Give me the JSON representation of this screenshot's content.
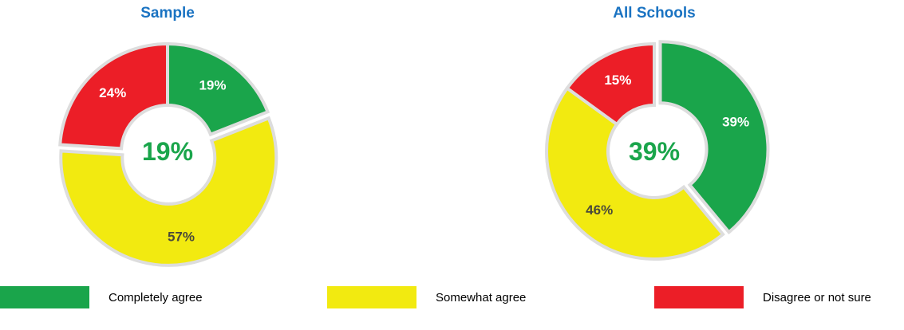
{
  "colors": {
    "title": "#1a73c2",
    "center_text": "#1aa54b",
    "slice_label_light": "#ffffff",
    "slice_label_dark": "#4a4a3a",
    "separator": "#dddddd"
  },
  "legend": [
    {
      "label": "Completely agree",
      "color": "#1aa54b"
    },
    {
      "label": "Somewhat agree",
      "color": "#f2ea10"
    },
    {
      "label": "Disagree or not sure",
      "color": "#ec1e27"
    }
  ],
  "chart_data": [
    {
      "type": "pie",
      "variant": "donut",
      "title": "Sample",
      "center_label": "19%",
      "categories": [
        "Completely agree",
        "Somewhat agree",
        "Disagree or not sure"
      ],
      "values": [
        19,
        57,
        24
      ],
      "labels": [
        "19%",
        "57%",
        "24%"
      ],
      "exploded": "Somewhat agree",
      "legend_position": "bottom"
    },
    {
      "type": "pie",
      "variant": "donut",
      "title": "All Schools",
      "center_label": "39%",
      "categories": [
        "Completely agree",
        "Somewhat agree",
        "Disagree or not sure"
      ],
      "values": [
        39,
        46,
        15
      ],
      "labels": [
        "39%",
        "46%",
        "15%"
      ],
      "exploded": "Completely agree",
      "legend_position": "bottom"
    }
  ]
}
